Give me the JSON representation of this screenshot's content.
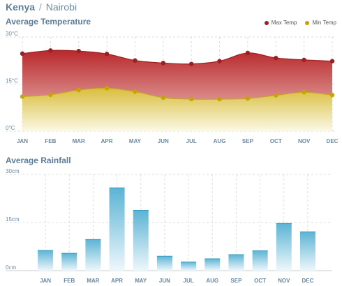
{
  "header": {
    "country": "Kenya",
    "separator": "/",
    "city": "Nairobi"
  },
  "colors": {
    "max_temp": "#9e1f22",
    "min_temp": "#c9a400",
    "rain_top": "#5bb3d4",
    "grid": "#dddddd",
    "axis_text": "#6a88a3"
  },
  "chart_data": [
    {
      "type": "area",
      "title": "Average Temperature",
      "xlabel": "",
      "ylabel": "",
      "y_ticks": [
        "0°C",
        "15°C",
        "30°C"
      ],
      "ylim": [
        0,
        30
      ],
      "grid": true,
      "legend_position": "top-right",
      "categories": [
        "JAN",
        "FEB",
        "MAR",
        "APR",
        "MAY",
        "JUN",
        "JUL",
        "AUG",
        "SEP",
        "OCT",
        "NOV",
        "DEC"
      ],
      "series": [
        {
          "name": "Max Temp",
          "values": [
            24.7,
            25.7,
            25.5,
            24.6,
            22.5,
            21.7,
            21.4,
            22.3,
            24.9,
            23.3,
            22.7,
            22.3
          ]
        },
        {
          "name": "Min Temp",
          "values": [
            11.0,
            11.6,
            13.1,
            13.7,
            12.6,
            10.7,
            10.2,
            10.2,
            10.4,
            11.4,
            12.4,
            11.5
          ]
        }
      ]
    },
    {
      "type": "bar",
      "title": "Average Rainfall",
      "xlabel": "",
      "ylabel": "",
      "y_ticks": [
        "0cm",
        "15cm",
        "30cm"
      ],
      "ylim": [
        0,
        30
      ],
      "grid": true,
      "categories": [
        "JAN",
        "FEB",
        "MAR",
        "APR",
        "MAY",
        "JUN",
        "JUL",
        "AUG",
        "SEP",
        "OCT",
        "NOV",
        "DEC"
      ],
      "values": [
        6.4,
        5.5,
        9.8,
        25.9,
        18.9,
        4.6,
        2.8,
        3.8,
        5.1,
        6.3,
        14.8,
        12.2
      ]
    }
  ]
}
